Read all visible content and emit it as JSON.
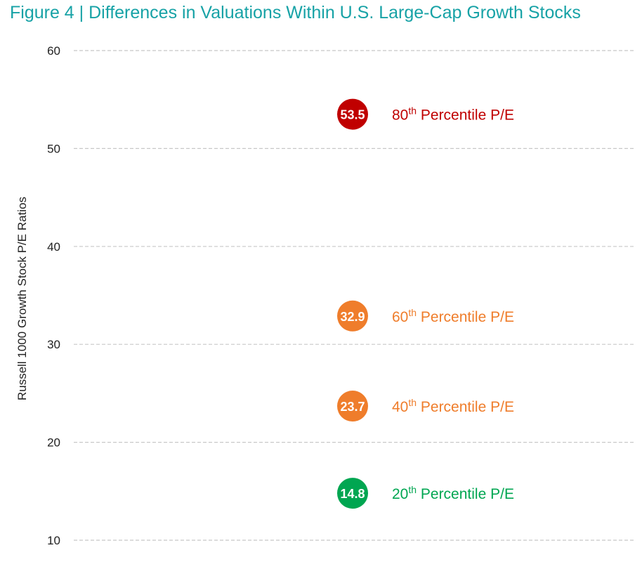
{
  "chart_data": {
    "type": "scatter",
    "title": "Figure 4 | Differences in Valuations Within U.S. Large-Cap Growth Stocks",
    "ylabel": "Russell 1000 Growth Stock P/E Ratios",
    "xlabel": "",
    "ylim": [
      10,
      60
    ],
    "yticks": [
      10,
      20,
      30,
      40,
      50,
      60
    ],
    "grid": true,
    "points": [
      {
        "value": 53.5,
        "label_value": "53.5",
        "ordinal": "80",
        "suffix": "th",
        "rest": " Percentile P/E",
        "color": "#c00000"
      },
      {
        "value": 32.9,
        "label_value": "32.9",
        "ordinal": "60",
        "suffix": "th",
        "rest": " Percentile P/E",
        "color": "#ef7d2b"
      },
      {
        "value": 23.7,
        "label_value": "23.7",
        "ordinal": "40",
        "suffix": "th",
        "rest": " Percentile P/E",
        "color": "#ef7d2b"
      },
      {
        "value": 14.8,
        "label_value": "14.8",
        "ordinal": "20",
        "suffix": "th",
        "rest": " Percentile P/E",
        "color": "#00a651"
      }
    ]
  }
}
